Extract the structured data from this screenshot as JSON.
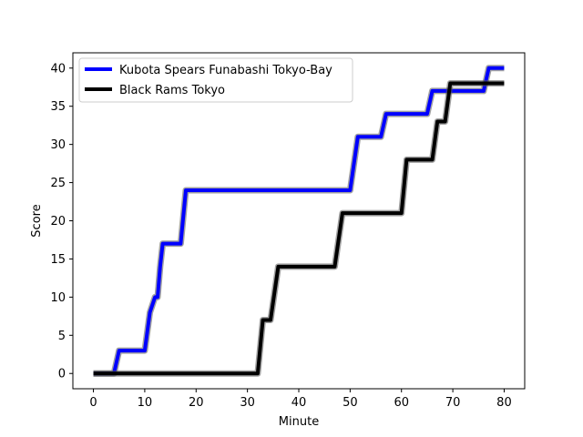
{
  "chart_data": {
    "type": "line",
    "title": "",
    "xlabel": "Minute",
    "ylabel": "Score",
    "xlim": [
      -4,
      84
    ],
    "ylim": [
      -2,
      42
    ],
    "x_ticks": [
      0,
      10,
      20,
      30,
      40,
      50,
      60,
      70,
      80
    ],
    "y_ticks": [
      0,
      5,
      10,
      15,
      20,
      25,
      30,
      35,
      40
    ],
    "grid": false,
    "legend_position": "upper-left",
    "series": [
      {
        "name": "Kubota Spears Funabashi Tokyo-Bay",
        "color": "#0000ff",
        "points": [
          [
            0,
            0
          ],
          [
            4,
            0
          ],
          [
            5,
            3
          ],
          [
            10,
            3
          ],
          [
            11,
            8
          ],
          [
            12,
            10
          ],
          [
            12.5,
            10
          ],
          [
            13,
            14
          ],
          [
            13.5,
            17
          ],
          [
            16,
            17
          ],
          [
            17,
            17
          ],
          [
            18,
            24
          ],
          [
            48,
            24
          ],
          [
            50,
            24
          ],
          [
            51.5,
            31
          ],
          [
            56,
            31
          ],
          [
            57,
            34
          ],
          [
            65,
            34
          ],
          [
            66,
            37
          ],
          [
            76,
            37
          ],
          [
            77,
            40
          ],
          [
            80,
            40
          ]
        ]
      },
      {
        "name": "Black Rams Tokyo",
        "color": "#000000",
        "points": [
          [
            0,
            0
          ],
          [
            32,
            0
          ],
          [
            33,
            7
          ],
          [
            34.5,
            7
          ],
          [
            36,
            14
          ],
          [
            47,
            14
          ],
          [
            48.5,
            21
          ],
          [
            60,
            21
          ],
          [
            61,
            28
          ],
          [
            66,
            28
          ],
          [
            67,
            33
          ],
          [
            68.5,
            33
          ],
          [
            69.5,
            38
          ],
          [
            80,
            38
          ]
        ]
      }
    ]
  }
}
